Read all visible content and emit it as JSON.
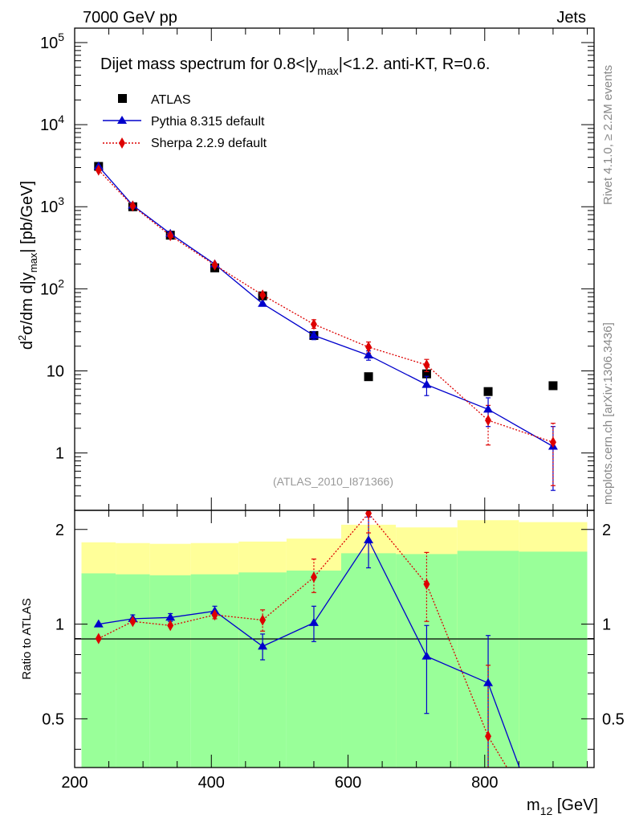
{
  "header": {
    "left": "7000 GeV pp",
    "right": "Jets"
  },
  "side_labels": {
    "rivet": "Rivet 4.1.0, ≥ 2.2M events",
    "mcplots": "mcplots.cern.ch [arXiv:1306.3436]"
  },
  "colors": {
    "atlas": "#000000",
    "pythia": "#0000cc",
    "sherpa": "#dd0000",
    "band_outer": "#ffff99",
    "band_inner": "#99ff99"
  },
  "chart_data": [
    {
      "type": "line",
      "scale": "log",
      "title": "Dijet mass spectrum for 0.8<|y_max|<1.2.  anti-KT, R=0.6.",
      "title_parts": {
        "pre": "Dijet mass spectrum for 0.8<|y",
        "sub": "max",
        "post": "|<1.2.  anti-KT, R=0.6."
      },
      "ylabel_parts": {
        "a": "d",
        "sup": "2",
        "b": "σ/dm d|y",
        "sub": "max",
        "c": "| [pb/GeV]"
      },
      "xlabel": "m12 [GeV]",
      "xlim": [
        200,
        960
      ],
      "ylim": [
        0.2,
        150000
      ],
      "ytick_labels": [
        {
          "v": 1,
          "label": "1"
        },
        {
          "v": 10,
          "label": "10"
        },
        {
          "v": 100,
          "base": "10",
          "exp": "2"
        },
        {
          "v": 1000,
          "base": "10",
          "exp": "3"
        },
        {
          "v": 10000,
          "base": "10",
          "exp": "4"
        },
        {
          "v": 100000,
          "base": "10",
          "exp": "5"
        }
      ],
      "watermark": "(ATLAS_2010_I871366)",
      "legend": [
        "ATLAS",
        "Pythia 8.315 default",
        "Sherpa 2.2.9 default"
      ],
      "bin_edges": [
        210,
        260,
        310,
        370,
        440,
        510,
        590,
        670,
        760,
        850,
        950
      ],
      "series": [
        {
          "name": "ATLAS",
          "x": [
            235,
            285,
            340,
            405,
            475,
            550,
            630,
            715,
            805,
            900
          ],
          "values": [
            3100,
            1000,
            450,
            180,
            82,
            27,
            8.5,
            9.2,
            5.6,
            6.6
          ]
        },
        {
          "name": "Pythia 8.315 default",
          "x": [
            235,
            285,
            340,
            405,
            475,
            550,
            630,
            715,
            805,
            900
          ],
          "values": [
            3100,
            1040,
            470,
            200,
            66,
            27,
            15.5,
            6.8,
            3.4,
            1.2
          ],
          "err_lo": [
            0,
            0,
            0,
            0,
            0,
            3,
            2,
            1.8,
            1.3,
            0.85
          ],
          "err_hi": [
            0,
            0,
            0,
            0,
            0,
            3,
            2,
            1.8,
            1.3,
            0.9
          ]
        },
        {
          "name": "Sherpa 2.2.9 default",
          "x": [
            235,
            285,
            340,
            405,
            475,
            550,
            630,
            715,
            805,
            900
          ],
          "values": [
            2800,
            1020,
            445,
            195,
            84,
            37,
            19.5,
            11.8,
            2.5,
            1.35
          ],
          "err_lo": [
            0,
            0,
            0,
            0,
            0,
            4,
            3,
            2,
            1.25,
            0.95
          ],
          "err_hi": [
            0,
            0,
            0,
            0,
            0,
            5,
            3,
            2,
            1.3,
            0.95
          ]
        }
      ]
    },
    {
      "type": "line",
      "title": "",
      "ylabel": "Ratio to ATLAS",
      "xlabel": "m12 [GeV]",
      "xlim": [
        200,
        960
      ],
      "ylim": [
        0.35,
        2.3
      ],
      "ytick_labels": [
        {
          "v": 0.5,
          "label": "0.5"
        },
        {
          "v": 1,
          "label": "1"
        },
        {
          "v": 2,
          "label": "2"
        }
      ],
      "xtick_labels": [
        {
          "v": 200,
          "label": "200"
        },
        {
          "v": 400,
          "label": "400"
        },
        {
          "v": 600,
          "label": "600"
        },
        {
          "v": 800,
          "label": "800"
        }
      ],
      "bands": {
        "edges": [
          210,
          260,
          310,
          370,
          440,
          510,
          590,
          670,
          760,
          850,
          950
        ],
        "outer_hi": [
          1.82,
          1.81,
          1.8,
          1.81,
          1.83,
          1.87,
          2.07,
          2.03,
          2.14,
          2.11
        ],
        "outer_lo": [
          0.64,
          0.65,
          0.66,
          0.65,
          0.61,
          0.55,
          0.25,
          0.36,
          0.27,
          0.25
        ],
        "inner_hi": [
          1.45,
          1.44,
          1.43,
          1.44,
          1.46,
          1.48,
          1.68,
          1.67,
          1.71,
          1.7
        ],
        "inner_lo": [
          0.35,
          0.35,
          0.35,
          0.35,
          0.35,
          0.35,
          0.35,
          0.35,
          0.35,
          0.35
        ]
      },
      "series": [
        {
          "name": "Pythia 8.315 default",
          "x": [
            235,
            285,
            340,
            405,
            475,
            550,
            630,
            715,
            805,
            900
          ],
          "values": [
            1.0,
            1.04,
            1.05,
            1.1,
            0.85,
            1.01,
            1.85,
            0.79,
            0.65,
            0.18
          ],
          "err_lo": [
            0,
            0.03,
            0.03,
            0.04,
            0.08,
            0.13,
            0.34,
            0.27,
            0.35,
            0
          ],
          "err_hi": [
            0,
            0.03,
            0.03,
            0.04,
            0.08,
            0.13,
            0.34,
            0.2,
            0.27,
            0
          ]
        },
        {
          "name": "Sherpa 2.2.9 default",
          "x": [
            235,
            285,
            340,
            405,
            475,
            550,
            630,
            715,
            805,
            900
          ],
          "values": [
            0.9,
            1.02,
            0.99,
            1.07,
            1.03,
            1.41,
            2.25,
            1.34,
            0.44,
            0.2
          ],
          "err_lo": [
            0,
            0,
            0,
            0.03,
            0.08,
            0.15,
            0.3,
            0.32,
            0.25,
            0
          ],
          "err_hi": [
            0,
            0,
            0,
            0.03,
            0.08,
            0.2,
            0.35,
            0.35,
            0.3,
            0
          ]
        }
      ]
    }
  ]
}
